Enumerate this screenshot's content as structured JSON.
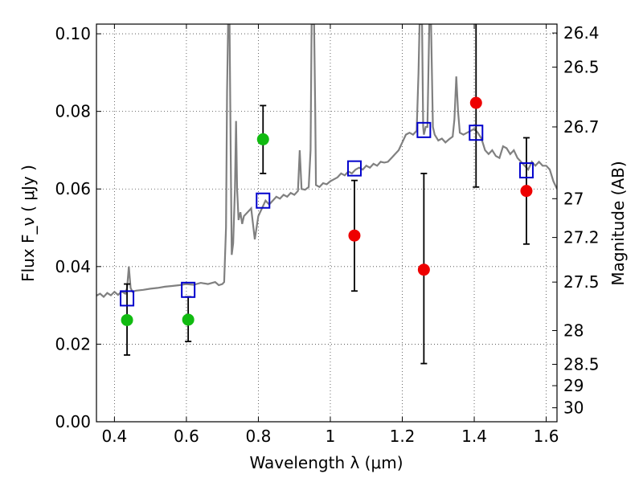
{
  "chart_data": {
    "type": "scatter",
    "xlabel": "Wavelength  λ (μm)",
    "ylabel": "Flux  F_ν  ( μJy )",
    "y2label": "Magnitude (AB)",
    "xlim": [
      0.35,
      1.63
    ],
    "ylim": [
      0.0,
      0.1025
    ],
    "grid": true,
    "x_ticks": [
      0.4,
      0.6,
      0.8,
      1.0,
      1.2,
      1.4,
      1.6
    ],
    "x_tick_labels": [
      "0.4",
      "0.6",
      "0.8",
      "1",
      "1.2",
      "1.4",
      "1.6"
    ],
    "y_ticks": [
      0.0,
      0.02,
      0.04,
      0.06,
      0.08,
      0.1
    ],
    "y_tick_labels": [
      "0.00",
      "0.02",
      "0.04",
      "0.06",
      "0.08",
      "0.10"
    ],
    "y2_ticks": [
      {
        "flux": 0.1002,
        "label": "26.4"
      },
      {
        "flux": 0.0914,
        "label": "26.5"
      },
      {
        "flux": 0.076,
        "label": "26.7"
      },
      {
        "flux": 0.0575,
        "label": "27"
      },
      {
        "flux": 0.0475,
        "label": "27.2"
      },
      {
        "flux": 0.036,
        "label": "27.5"
      },
      {
        "flux": 0.0235,
        "label": "28"
      },
      {
        "flux": 0.0148,
        "label": "28.5"
      },
      {
        "flux": 0.0093,
        "label": "29"
      },
      {
        "flux": 0.0036,
        "label": "30"
      }
    ],
    "series": [
      {
        "kind": "spectrum",
        "color": "#808080",
        "points": [
          [
            0.35,
            0.0325
          ],
          [
            0.36,
            0.033
          ],
          [
            0.37,
            0.0322
          ],
          [
            0.38,
            0.0332
          ],
          [
            0.39,
            0.0326
          ],
          [
            0.4,
            0.0335
          ],
          [
            0.41,
            0.0327
          ],
          [
            0.42,
            0.0336
          ],
          [
            0.43,
            0.033
          ],
          [
            0.435,
            0.0345
          ],
          [
            0.44,
            0.04
          ],
          [
            0.445,
            0.0345
          ],
          [
            0.45,
            0.0335
          ],
          [
            0.46,
            0.0338
          ],
          [
            0.48,
            0.034
          ],
          [
            0.5,
            0.0343
          ],
          [
            0.52,
            0.0345
          ],
          [
            0.54,
            0.0348
          ],
          [
            0.56,
            0.035
          ],
          [
            0.58,
            0.0352
          ],
          [
            0.6,
            0.0355
          ],
          [
            0.62,
            0.0353
          ],
          [
            0.64,
            0.0358
          ],
          [
            0.66,
            0.0355
          ],
          [
            0.68,
            0.036
          ],
          [
            0.69,
            0.0352
          ],
          [
            0.7,
            0.0355
          ],
          [
            0.705,
            0.036
          ],
          [
            0.71,
            0.05
          ],
          [
            0.713,
            0.085
          ],
          [
            0.716,
            0.1025
          ],
          [
            0.72,
            0.1025
          ],
          [
            0.723,
            0.07
          ],
          [
            0.726,
            0.043
          ],
          [
            0.73,
            0.046
          ],
          [
            0.735,
            0.06
          ],
          [
            0.738,
            0.0775
          ],
          [
            0.741,
            0.06
          ],
          [
            0.745,
            0.052
          ],
          [
            0.75,
            0.054
          ],
          [
            0.755,
            0.051
          ],
          [
            0.76,
            0.053
          ],
          [
            0.77,
            0.054
          ],
          [
            0.78,
            0.055
          ],
          [
            0.79,
            0.047
          ],
          [
            0.8,
            0.053
          ],
          [
            0.81,
            0.055
          ],
          [
            0.82,
            0.057
          ],
          [
            0.83,
            0.056
          ],
          [
            0.84,
            0.057
          ],
          [
            0.85,
            0.058
          ],
          [
            0.86,
            0.0575
          ],
          [
            0.87,
            0.0585
          ],
          [
            0.88,
            0.058
          ],
          [
            0.89,
            0.059
          ],
          [
            0.9,
            0.0585
          ],
          [
            0.91,
            0.0595
          ],
          [
            0.915,
            0.07
          ],
          [
            0.92,
            0.06
          ],
          [
            0.93,
            0.0598
          ],
          [
            0.94,
            0.0605
          ],
          [
            0.945,
            0.07
          ],
          [
            0.948,
            0.1025
          ],
          [
            0.955,
            0.1025
          ],
          [
            0.958,
            0.08
          ],
          [
            0.96,
            0.061
          ],
          [
            0.97,
            0.0605
          ],
          [
            0.98,
            0.0615
          ],
          [
            0.99,
            0.0612
          ],
          [
            1.0,
            0.062
          ],
          [
            1.01,
            0.0625
          ],
          [
            1.02,
            0.063
          ],
          [
            1.03,
            0.064
          ],
          [
            1.04,
            0.0635
          ],
          [
            1.05,
            0.0645
          ],
          [
            1.06,
            0.064
          ],
          [
            1.07,
            0.065
          ],
          [
            1.08,
            0.0655
          ],
          [
            1.09,
            0.065
          ],
          [
            1.1,
            0.066
          ],
          [
            1.11,
            0.0655
          ],
          [
            1.12,
            0.0665
          ],
          [
            1.13,
            0.066
          ],
          [
            1.14,
            0.067
          ],
          [
            1.15,
            0.0668
          ],
          [
            1.16,
            0.067
          ],
          [
            1.17,
            0.068
          ],
          [
            1.18,
            0.069
          ],
          [
            1.19,
            0.07
          ],
          [
            1.2,
            0.072
          ],
          [
            1.21,
            0.074
          ],
          [
            1.22,
            0.0745
          ],
          [
            1.23,
            0.074
          ],
          [
            1.24,
            0.075
          ],
          [
            1.245,
            0.09
          ],
          [
            1.248,
            0.1025
          ],
          [
            1.255,
            0.1025
          ],
          [
            1.258,
            0.076
          ],
          [
            1.26,
            0.074
          ],
          [
            1.265,
            0.076
          ],
          [
            1.27,
            0.076
          ],
          [
            1.275,
            0.1025
          ],
          [
            1.28,
            0.1025
          ],
          [
            1.285,
            0.076
          ],
          [
            1.29,
            0.074
          ],
          [
            1.3,
            0.0725
          ],
          [
            1.31,
            0.073
          ],
          [
            1.32,
            0.072
          ],
          [
            1.33,
            0.0728
          ],
          [
            1.34,
            0.0735
          ],
          [
            1.345,
            0.078
          ],
          [
            1.35,
            0.089
          ],
          [
            1.355,
            0.08
          ],
          [
            1.36,
            0.0745
          ],
          [
            1.37,
            0.074
          ],
          [
            1.38,
            0.0745
          ],
          [
            1.39,
            0.075
          ],
          [
            1.4,
            0.0755
          ],
          [
            1.41,
            0.0745
          ],
          [
            1.42,
            0.073
          ],
          [
            1.43,
            0.07
          ],
          [
            1.44,
            0.069
          ],
          [
            1.45,
            0.07
          ],
          [
            1.46,
            0.0685
          ],
          [
            1.47,
            0.068
          ],
          [
            1.48,
            0.071
          ],
          [
            1.49,
            0.0705
          ],
          [
            1.5,
            0.069
          ],
          [
            1.51,
            0.07
          ],
          [
            1.52,
            0.068
          ],
          [
            1.53,
            0.067
          ],
          [
            1.54,
            0.066
          ],
          [
            1.55,
            0.065
          ],
          [
            1.56,
            0.067
          ],
          [
            1.57,
            0.066
          ],
          [
            1.58,
            0.067
          ],
          [
            1.59,
            0.066
          ],
          [
            1.6,
            0.066
          ],
          [
            1.61,
            0.065
          ],
          [
            1.62,
            0.062
          ],
          [
            1.63,
            0.06
          ]
        ]
      },
      {
        "kind": "observed",
        "color": "#11bb11",
        "points": [
          {
            "x": 0.435,
            "y": 0.0262,
            "err_low": 0.0172,
            "err_high": 0.0355
          },
          {
            "x": 0.605,
            "y": 0.0263,
            "err_low": 0.0207,
            "err_high": 0.0322
          },
          {
            "x": 0.813,
            "y": 0.0728,
            "err_low": 0.064,
            "err_high": 0.0815
          }
        ]
      },
      {
        "kind": "observed",
        "color": "#ee0000",
        "points": [
          {
            "x": 1.067,
            "y": 0.048,
            "err_low": 0.0337,
            "err_high": 0.0622
          },
          {
            "x": 1.26,
            "y": 0.0392,
            "err_low": 0.015,
            "err_high": 0.064
          },
          {
            "x": 1.405,
            "y": 0.0822,
            "err_low": 0.0605,
            "err_high": 0.1025
          },
          {
            "x": 1.545,
            "y": 0.0595,
            "err_low": 0.0458,
            "err_high": 0.0732
          }
        ]
      },
      {
        "kind": "model",
        "color": "#0000cc",
        "points": [
          {
            "x": 0.435,
            "y": 0.0318
          },
          {
            "x": 0.605,
            "y": 0.034
          },
          {
            "x": 0.813,
            "y": 0.057
          },
          {
            "x": 1.067,
            "y": 0.0653
          },
          {
            "x": 1.26,
            "y": 0.0752
          },
          {
            "x": 1.405,
            "y": 0.0745
          },
          {
            "x": 1.545,
            "y": 0.0648
          }
        ]
      }
    ]
  }
}
